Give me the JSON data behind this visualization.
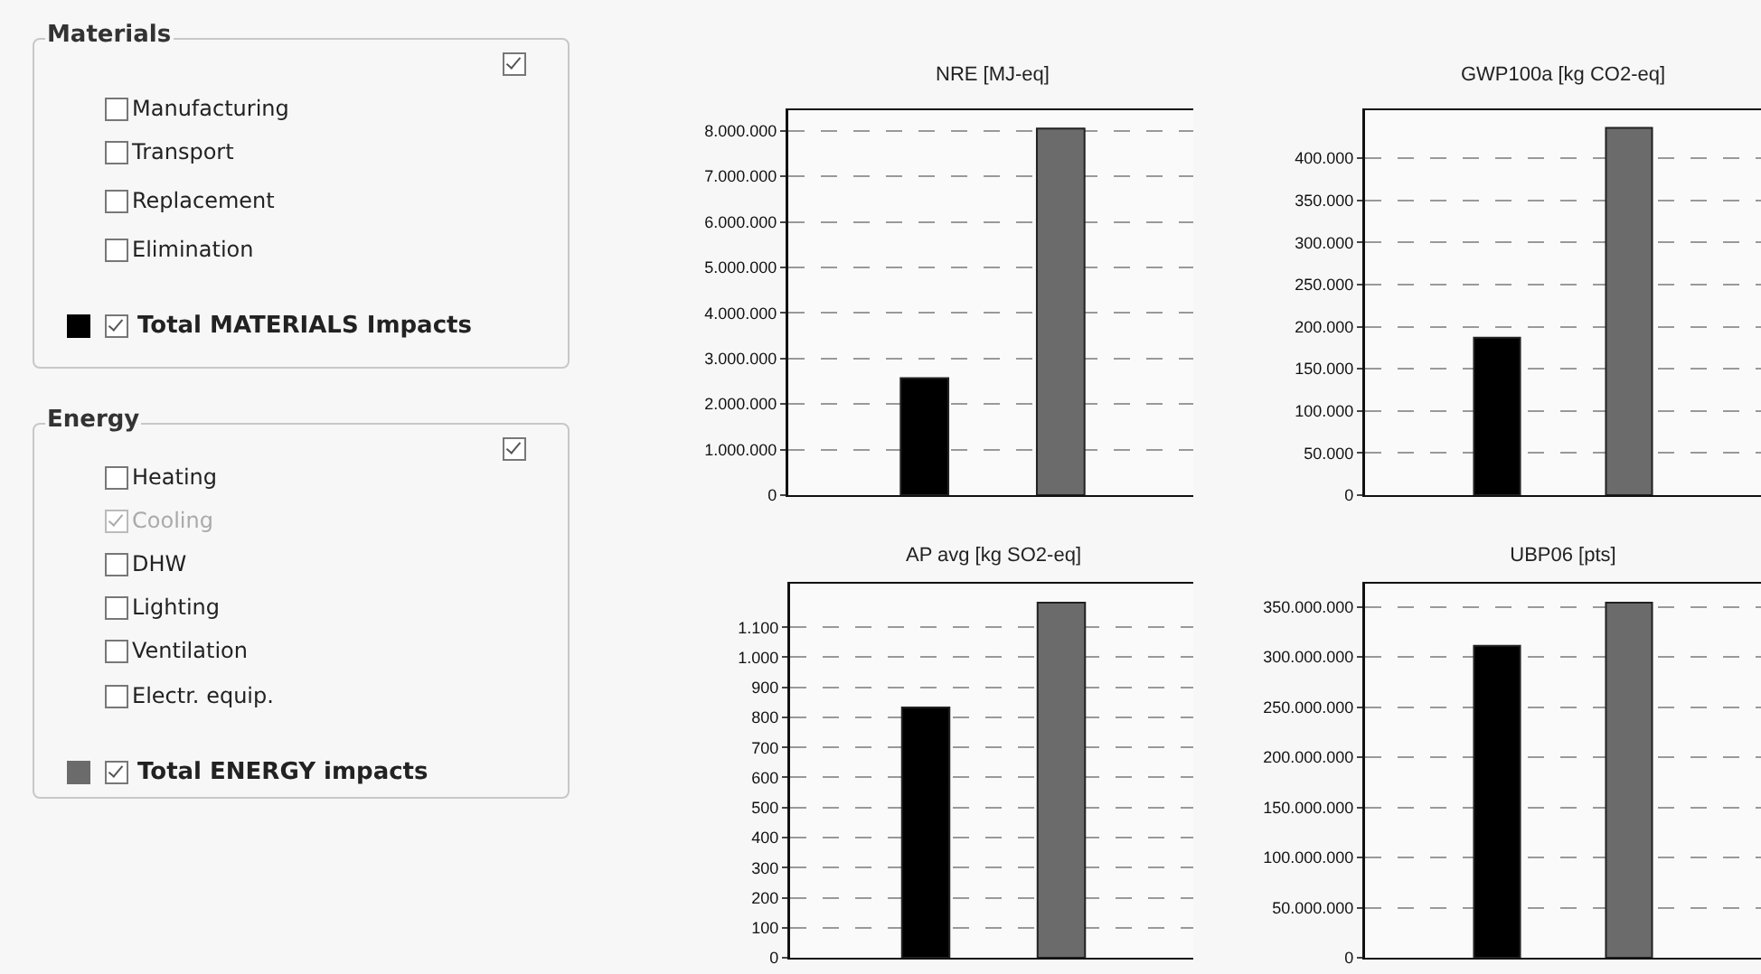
{
  "chart_data": [
    {
      "type": "other",
      "title": "Materials",
      "annotations": [
        "Manufacturing",
        "Transport",
        "Replacement",
        "Elimination",
        "Total MATERIALS Impacts"
      ]
    },
    {
      "type": "other",
      "title": "Energy",
      "annotations": [
        "Heating",
        "Cooling",
        "DHW",
        "Lighting",
        "Ventilation",
        "Electr. equip.",
        "Total ENERGY impacts"
      ]
    },
    {
      "type": "bar",
      "title": "NRE [MJ-eq]",
      "categories": [
        null,
        null
      ],
      "values": [
        2570000,
        8050000
      ],
      "colors": [
        "#000000",
        "#6b6b6b"
      ],
      "ylim": [
        0,
        8450000
      ],
      "yticks": [
        0,
        {
          "value": 1000000,
          "label": "1.000.000"
        },
        {
          "value": 2000000,
          "label": "2.000.000"
        },
        {
          "value": 3000000,
          "label": "3.000.000"
        },
        {
          "value": 4000000,
          "label": "4.000.000"
        },
        {
          "value": 5000000,
          "label": "5.000.000"
        },
        {
          "value": 6000000,
          "label": "6.000.000"
        },
        {
          "value": 7000000,
          "label": "7.000.000"
        },
        {
          "value": 8000000,
          "label": "8.000.000"
        }
      ],
      "grid": "y"
    },
    {
      "type": "bar",
      "title": "GWP100a [kg CO2-eq]",
      "categories": [
        null,
        null
      ],
      "values": [
        187000,
        436000
      ],
      "colors": [
        "#000000",
        "#6b6b6b"
      ],
      "ylim": [
        0,
        457000
      ],
      "yticks": [
        0,
        {
          "value": 50000,
          "label": "50.000"
        },
        {
          "value": 100000,
          "label": "100.000"
        },
        {
          "value": 150000,
          "label": "150.000"
        },
        {
          "value": 200000,
          "label": "200.000"
        },
        {
          "value": 250000,
          "label": "250.000"
        },
        {
          "value": 300000,
          "label": "300.000"
        },
        {
          "value": 350000,
          "label": "350.000"
        },
        {
          "value": 400000,
          "label": "400.000"
        }
      ],
      "grid": "y"
    },
    {
      "type": "bar",
      "title": "AP avg [kg SO2-eq]",
      "categories": [
        null,
        null
      ],
      "values": [
        833,
        1182
      ],
      "colors": [
        "#000000",
        "#6b6b6b"
      ],
      "ylim": [
        0,
        1245
      ],
      "yticks": [
        0,
        100,
        200,
        300,
        400,
        500,
        600,
        700,
        800,
        900,
        {
          "value": 1000,
          "label": "1.000"
        },
        {
          "value": 1100,
          "label": "1.100"
        }
      ],
      "grid": "y"
    },
    {
      "type": "bar",
      "title": "UBP06 [pts]",
      "categories": [
        null,
        null
      ],
      "values": [
        311000000,
        354000000
      ],
      "colors": [
        "#000000",
        "#6b6b6b"
      ],
      "ylim": [
        0,
        373000000
      ],
      "yticks": [
        0,
        {
          "value": 50000000,
          "label": "50.000.000"
        },
        {
          "value": 100000000,
          "label": "100.000.000"
        },
        {
          "value": 150000000,
          "label": "150.000.000"
        },
        {
          "value": 200000000,
          "label": "200.000.000"
        },
        {
          "value": 250000000,
          "label": "250.000.000"
        },
        {
          "value": 300000000,
          "label": "300.000.000"
        },
        {
          "value": 350000000,
          "label": "350.000.000"
        }
      ],
      "grid": "y"
    }
  ]
}
